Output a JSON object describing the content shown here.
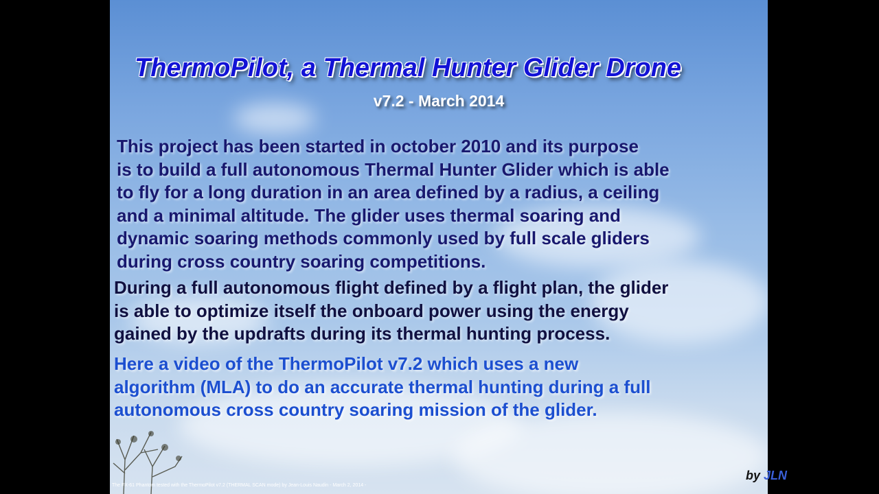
{
  "slide": {
    "title": "ThermoPilot, a Thermal Hunter Glider Drone",
    "subtitle": "v7.2  - March 2014",
    "paragraph1": [
      "This project has been started in october 2010 and its purpose",
      "is to build a full autonomous Thermal Hunter Glider which is able",
      "to fly for a long duration in an area defined by a radius, a ceiling",
      "and a minimal altitude. The glider uses thermal soaring and",
      "dynamic soaring methods commonly used by full scale gliders",
      "during cross country soaring competitions."
    ],
    "paragraph2": [
      "During a full autonomous flight defined by a flight plan, the glider",
      "is able to optimize itself the onboard power using the energy",
      "gained by the updrafts during its thermal hunting process."
    ],
    "paragraph3": [
      "Here a video of the ThermoPilot v7.2 which uses a new",
      "algorithm (MLA) to do an accurate thermal hunting during a full",
      "autonomous cross country soaring mission of the glider."
    ],
    "credit": "The FX-61 Phantom tested with the ThermoPilot v7.2 (THERMAL SCAN mode) by Jean-Louis Naudin - March 2, 2014 -",
    "signature_by": "by ",
    "signature_name": "JLN"
  }
}
